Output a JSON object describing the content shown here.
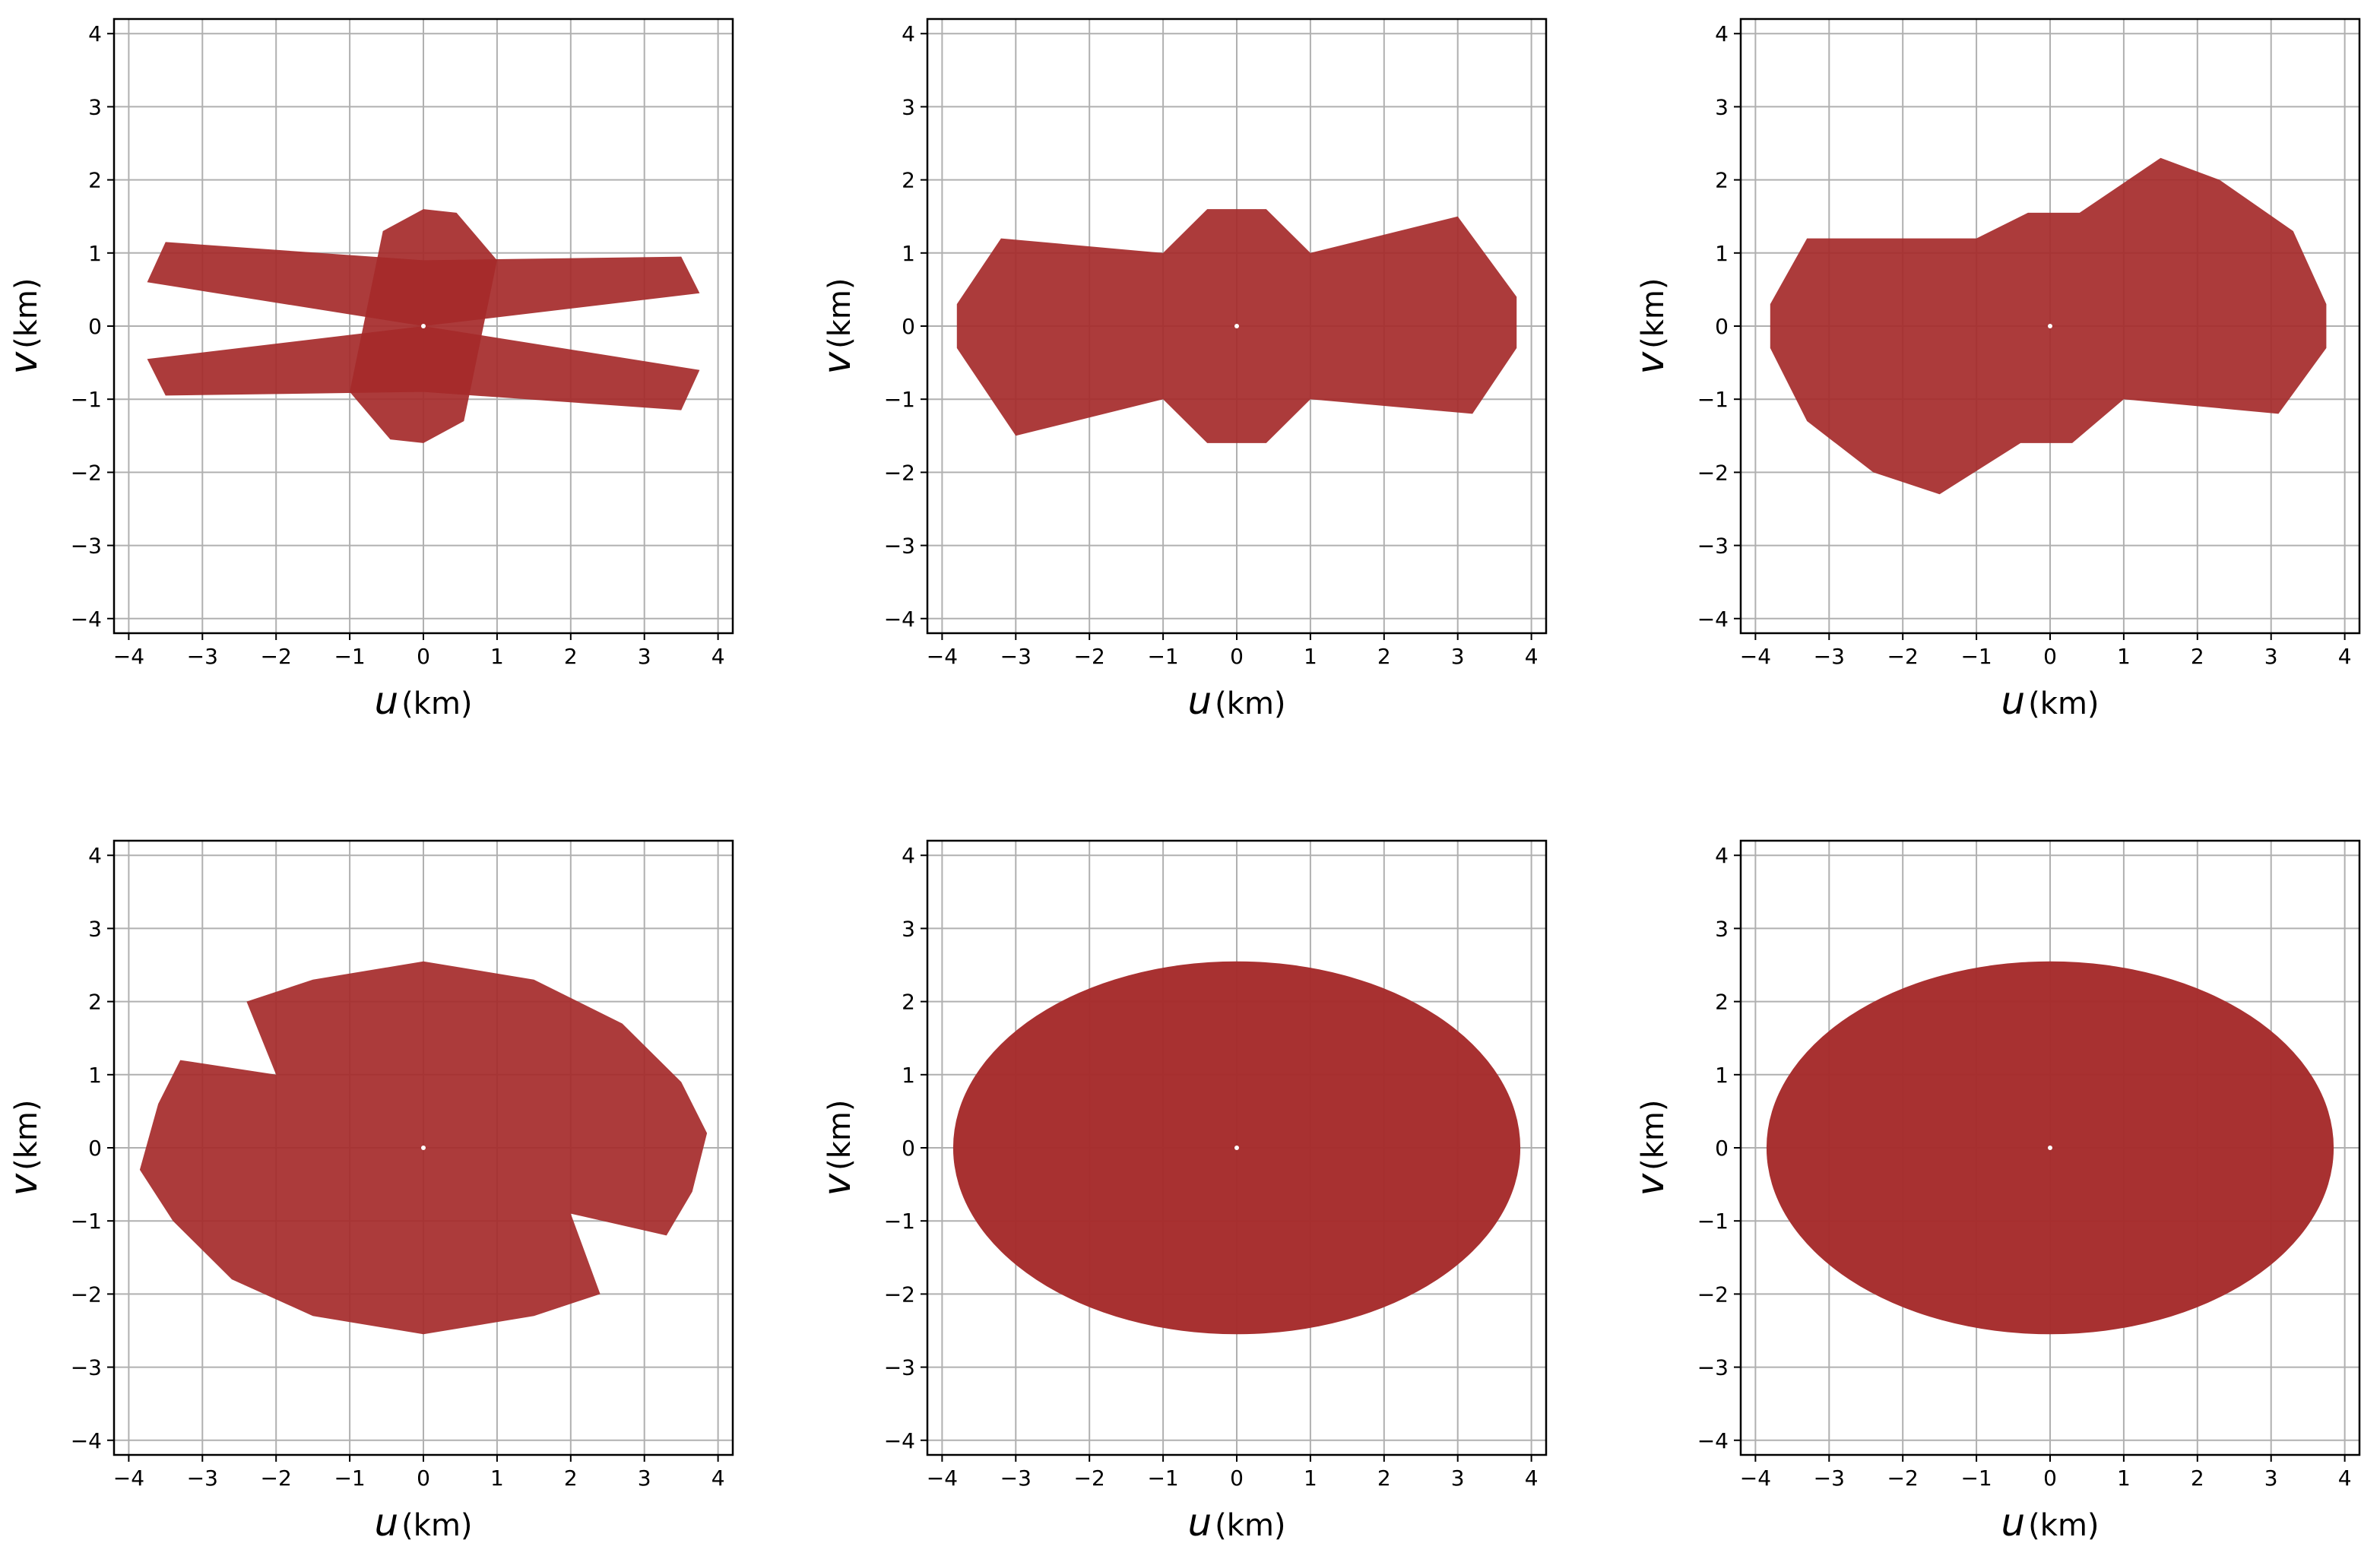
{
  "colors": {
    "points": "#a52a2a",
    "grid": "#b0b0b0",
    "frame": "#000000",
    "background": "#ffffff"
  },
  "axis": {
    "xlabel_var": "u",
    "xlabel_unit": "(km)",
    "ylabel_var": "v",
    "ylabel_unit": "(km)"
  },
  "chart_data": [
    {
      "type": "scatter",
      "panel": "row 1, column 1",
      "xlabel": "u (km)",
      "ylabel": "v (km)",
      "xlim": [
        -4.2,
        4.2
      ],
      "ylim": [
        -4.2,
        4.2
      ],
      "xticks": [
        -4,
        -3,
        -2,
        -1,
        0,
        1,
        2,
        3,
        4
      ],
      "yticks": [
        -4,
        -3,
        -2,
        -1,
        0,
        1,
        2,
        3,
        4
      ],
      "xtick_labels": [
        "−4",
        "−3",
        "−2",
        "−1",
        "0",
        "1",
        "2",
        "3",
        "4"
      ],
      "ytick_labels": [
        "−4",
        "−3",
        "−2",
        "−1",
        "0",
        "1",
        "2",
        "3",
        "4"
      ],
      "grid": true,
      "coverage_regions": [
        {
          "shape": "polygon",
          "vertices": [
            [
              -3.5,
              1.15
            ],
            [
              0,
              0.9
            ],
            [
              3.5,
              0.95
            ],
            [
              3.75,
              0.45
            ],
            [
              0,
              0
            ],
            [
              -3.75,
              0.6
            ]
          ]
        },
        {
          "shape": "polygon",
          "vertices": [
            [
              3.5,
              -1.15
            ],
            [
              0,
              -0.9
            ],
            [
              -3.5,
              -0.95
            ],
            [
              -3.75,
              -0.45
            ],
            [
              0,
              0
            ],
            [
              3.75,
              -0.6
            ]
          ]
        },
        {
          "shape": "polygon",
          "vertices": [
            [
              0,
              1.6
            ],
            [
              0.45,
              1.55
            ],
            [
              1.0,
              0.9
            ],
            [
              0.55,
              -1.3
            ],
            [
              0,
              -1.6
            ],
            [
              -0.45,
              -1.55
            ],
            [
              -1.0,
              -0.9
            ],
            [
              -0.55,
              1.3
            ]
          ]
        }
      ]
    },
    {
      "type": "scatter",
      "panel": "row 1, column 2",
      "xlabel": "u (km)",
      "ylabel": "v (km)",
      "xlim": [
        -4.2,
        4.2
      ],
      "ylim": [
        -4.2,
        4.2
      ],
      "xticks": [
        -4,
        -3,
        -2,
        -1,
        0,
        1,
        2,
        3,
        4
      ],
      "yticks": [
        -4,
        -3,
        -2,
        -1,
        0,
        1,
        2,
        3,
        4
      ],
      "xtick_labels": [
        "−4",
        "−3",
        "−2",
        "−1",
        "0",
        "1",
        "2",
        "3",
        "4"
      ],
      "ytick_labels": [
        "−4",
        "−3",
        "−2",
        "−1",
        "0",
        "1",
        "2",
        "3",
        "4"
      ],
      "grid": true,
      "coverage_regions": [
        {
          "shape": "polygon",
          "vertices": [
            [
              -3.2,
              1.2
            ],
            [
              -1.0,
              1.0
            ],
            [
              -0.4,
              1.6
            ],
            [
              0.4,
              1.6
            ],
            [
              1.0,
              1.0
            ],
            [
              3.0,
              1.5
            ],
            [
              3.8,
              0.4
            ],
            [
              3.8,
              -0.3
            ],
            [
              3.2,
              -1.2
            ],
            [
              1.0,
              -1.0
            ],
            [
              0.4,
              -1.6
            ],
            [
              -0.4,
              -1.6
            ],
            [
              -1.0,
              -1.0
            ],
            [
              -3.0,
              -1.5
            ],
            [
              -3.8,
              -0.3
            ],
            [
              -3.8,
              0.3
            ]
          ]
        }
      ]
    },
    {
      "type": "scatter",
      "panel": "row 1, column 3",
      "xlabel": "u (km)",
      "ylabel": "v (km)",
      "xlim": [
        -4.2,
        4.2
      ],
      "ylim": [
        -4.2,
        4.2
      ],
      "xticks": [
        -4,
        -3,
        -2,
        -1,
        0,
        1,
        2,
        3,
        4
      ],
      "yticks": [
        -4,
        -3,
        -2,
        -1,
        0,
        1,
        2,
        3,
        4
      ],
      "xtick_labels": [
        "−4",
        "−3",
        "−2",
        "−1",
        "0",
        "1",
        "2",
        "3",
        "4"
      ],
      "ytick_labels": [
        "−4",
        "−3",
        "−2",
        "−1",
        "0",
        "1",
        "2",
        "3",
        "4"
      ],
      "grid": true,
      "coverage_regions": [
        {
          "shape": "polygon",
          "vertices": [
            [
              -3.3,
              1.2
            ],
            [
              -1.0,
              1.2
            ],
            [
              -0.3,
              1.55
            ],
            [
              0.4,
              1.55
            ],
            [
              1.5,
              2.3
            ],
            [
              2.3,
              2.0
            ],
            [
              3.3,
              1.3
            ],
            [
              3.75,
              0.3
            ],
            [
              3.75,
              -0.3
            ],
            [
              3.1,
              -1.2
            ],
            [
              1.0,
              -1.0
            ],
            [
              0.3,
              -1.6
            ],
            [
              -0.4,
              -1.6
            ],
            [
              -1.5,
              -2.3
            ],
            [
              -2.4,
              -2.0
            ],
            [
              -3.3,
              -1.3
            ],
            [
              -3.8,
              -0.3
            ],
            [
              -3.8,
              0.3
            ]
          ]
        }
      ]
    },
    {
      "type": "scatter",
      "panel": "row 2, column 1",
      "xlabel": "u (km)",
      "ylabel": "v (km)",
      "xlim": [
        -4.2,
        4.2
      ],
      "ylim": [
        -4.2,
        4.2
      ],
      "xticks": [
        -4,
        -3,
        -2,
        -1,
        0,
        1,
        2,
        3,
        4
      ],
      "yticks": [
        -4,
        -3,
        -2,
        -1,
        0,
        1,
        2,
        3,
        4
      ],
      "xtick_labels": [
        "−4",
        "−3",
        "−2",
        "−1",
        "0",
        "1",
        "2",
        "3",
        "4"
      ],
      "ytick_labels": [
        "−4",
        "−3",
        "−2",
        "−1",
        "0",
        "1",
        "2",
        "3",
        "4"
      ],
      "grid": true,
      "coverage_regions": [
        {
          "shape": "polygon",
          "vertices": [
            [
              -2.4,
              2.0
            ],
            [
              -1.5,
              2.3
            ],
            [
              0,
              2.55
            ],
            [
              1.5,
              2.3
            ],
            [
              2.7,
              1.7
            ],
            [
              3.5,
              0.9
            ],
            [
              3.85,
              0.2
            ],
            [
              3.65,
              -0.6
            ],
            [
              3.3,
              -1.2
            ],
            [
              2.0,
              -0.9
            ],
            [
              2.4,
              -2.0
            ],
            [
              1.5,
              -2.3
            ],
            [
              0,
              -2.55
            ],
            [
              -1.5,
              -2.3
            ],
            [
              -2.6,
              -1.8
            ],
            [
              -3.4,
              -1.0
            ],
            [
              -3.85,
              -0.3
            ],
            [
              -3.6,
              0.6
            ],
            [
              -3.3,
              1.2
            ],
            [
              -2.0,
              1.0
            ]
          ]
        }
      ]
    },
    {
      "type": "scatter",
      "panel": "row 2, column 2",
      "xlabel": "u (km)",
      "ylabel": "v (km)",
      "xlim": [
        -4.2,
        4.2
      ],
      "ylim": [
        -4.2,
        4.2
      ],
      "xticks": [
        -4,
        -3,
        -2,
        -1,
        0,
        1,
        2,
        3,
        4
      ],
      "yticks": [
        -4,
        -3,
        -2,
        -1,
        0,
        1,
        2,
        3,
        4
      ],
      "xtick_labels": [
        "−4",
        "−3",
        "−2",
        "−1",
        "0",
        "1",
        "2",
        "3",
        "4"
      ],
      "ytick_labels": [
        "−4",
        "−3",
        "−2",
        "−1",
        "0",
        "1",
        "2",
        "3",
        "4"
      ],
      "grid": true,
      "coverage_regions": [
        {
          "shape": "ellipse",
          "center": [
            0,
            0
          ],
          "semi_axes": [
            3.85,
            2.55
          ]
        }
      ]
    },
    {
      "type": "scatter",
      "panel": "row 2, column 3",
      "xlabel": "u (km)",
      "ylabel": "v (km)",
      "xlim": [
        -4.2,
        4.2
      ],
      "ylim": [
        -4.2,
        4.2
      ],
      "xticks": [
        -4,
        -3,
        -2,
        -1,
        0,
        1,
        2,
        3,
        4
      ],
      "yticks": [
        -4,
        -3,
        -2,
        -1,
        0,
        1,
        2,
        3,
        4
      ],
      "xtick_labels": [
        "−4",
        "−3",
        "−2",
        "−1",
        "0",
        "1",
        "2",
        "3",
        "4"
      ],
      "ytick_labels": [
        "−4",
        "−3",
        "−2",
        "−1",
        "0",
        "1",
        "2",
        "3",
        "4"
      ],
      "grid": true,
      "coverage_regions": [
        {
          "shape": "ellipse",
          "center": [
            0,
            0
          ],
          "semi_axes": [
            3.85,
            2.55
          ]
        }
      ]
    }
  ]
}
